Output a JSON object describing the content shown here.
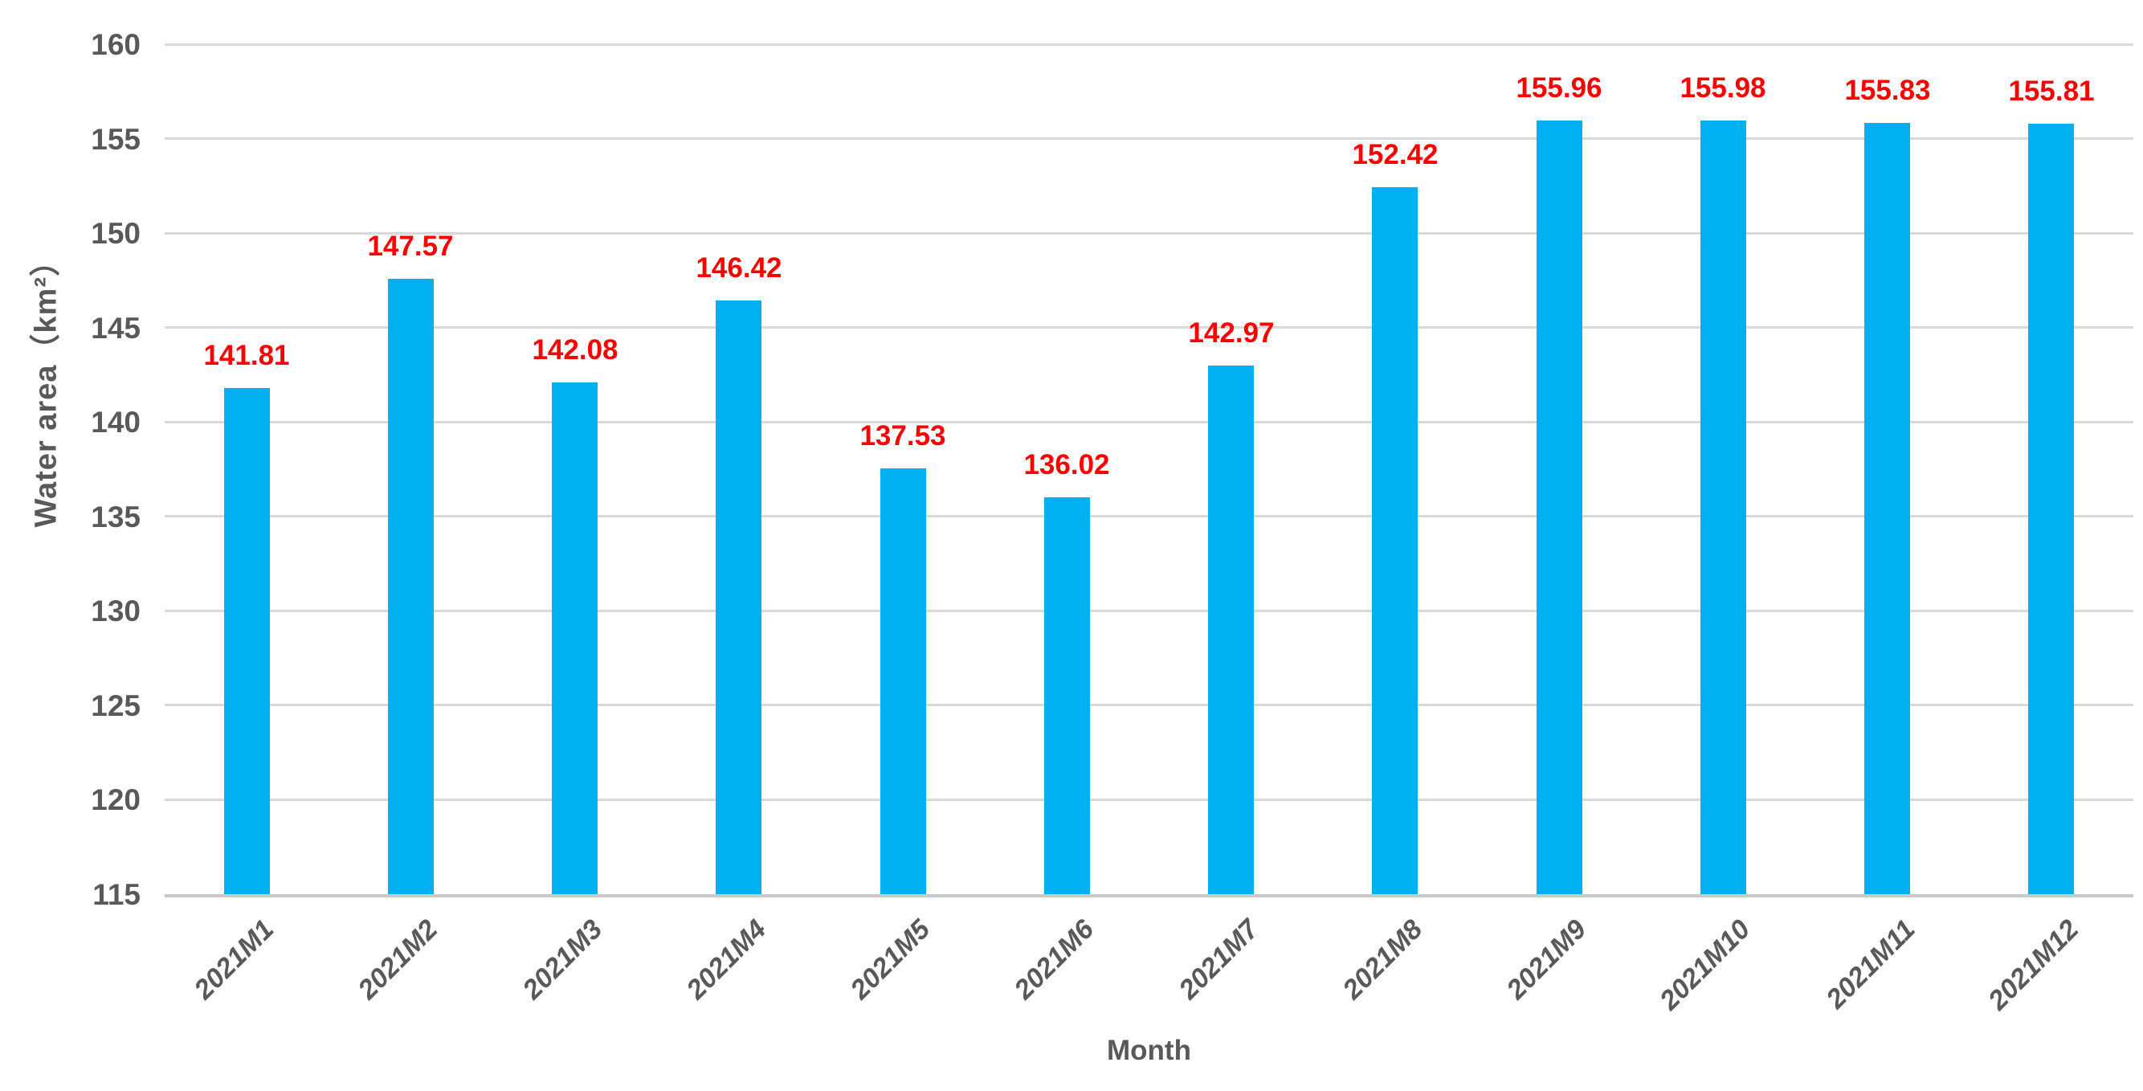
{
  "chart_data": {
    "type": "bar",
    "title": "",
    "categories": [
      "2021M1",
      "2021M2",
      "2021M3",
      "2021M4",
      "2021M5",
      "2021M6",
      "2021M7",
      "2021M8",
      "2021M9",
      "2021M10",
      "2021M11",
      "2021M12"
    ],
    "values": [
      141.81,
      147.57,
      142.08,
      146.42,
      137.53,
      136.02,
      142.97,
      152.42,
      155.96,
      155.98,
      155.83,
      155.81
    ],
    "value_labels": [
      "141.81",
      "147.57",
      "142.08",
      "146.42",
      "137.53",
      "136.02",
      "142.97",
      "152.42",
      "155.96",
      "155.98",
      "155.83",
      "155.81"
    ],
    "xlabel": "Month",
    "ylabel": "Water area（km²）",
    "ylim": [
      115,
      160
    ],
    "yticks": [
      115,
      120,
      125,
      130,
      135,
      140,
      145,
      150,
      155,
      160
    ],
    "grid": true,
    "legend_position": "none",
    "colors": {
      "bar": "#00b0f0",
      "value_label": "#ff0000",
      "axis_text": "#595959",
      "gridline": "#d9d9d9",
      "axis_line": "#c9c9c9"
    }
  }
}
